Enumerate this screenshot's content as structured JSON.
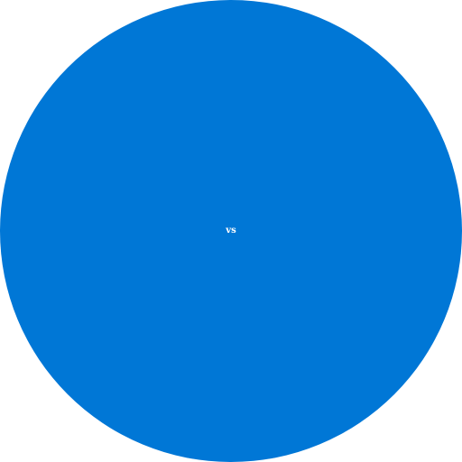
{
  "badge": {
    "label": "vs",
    "background_color": "#0077D6",
    "text_color": "#FFFFFF"
  }
}
